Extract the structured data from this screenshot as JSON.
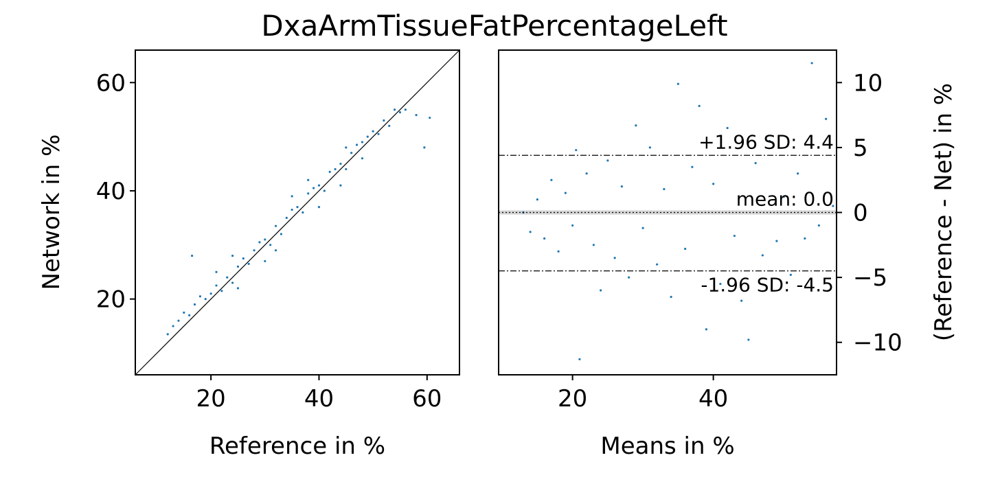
{
  "figure": {
    "title": "DxaArmTissueFatPercentageLeft"
  },
  "chart_data": [
    {
      "type": "scatter",
      "xlabel": "Reference in %",
      "ylabel": "Network in %",
      "xlim": [
        6,
        66
      ],
      "ylim": [
        6,
        66
      ],
      "xticks": [
        20,
        40,
        60
      ],
      "yticks": [
        20,
        40,
        60
      ],
      "xtick_labels": [
        "20",
        "40",
        "60"
      ],
      "ytick_labels": [
        "20",
        "40",
        "60"
      ],
      "identity_line": true,
      "grid": false,
      "point_color": "#1f77b4",
      "line_color": "#000000",
      "series": [
        {
          "values": [
            [
              12,
              13.5
            ],
            [
              13,
              15
            ],
            [
              14,
              16
            ],
            [
              15,
              17.5
            ],
            [
              16,
              17
            ],
            [
              16.5,
              28
            ],
            [
              17,
              19
            ],
            [
              18,
              20.5
            ],
            [
              19,
              20
            ],
            [
              20,
              21
            ],
            [
              21,
              22.5
            ],
            [
              22,
              21.5
            ],
            [
              23,
              24
            ],
            [
              24,
              23
            ],
            [
              25,
              26
            ],
            [
              26,
              27.5
            ],
            [
              27,
              26.5
            ],
            [
              28,
              29
            ],
            [
              29,
              30.5
            ],
            [
              30,
              31
            ],
            [
              31,
              30
            ],
            [
              32,
              33.5
            ],
            [
              33,
              32
            ],
            [
              34,
              35
            ],
            [
              35,
              36.5
            ],
            [
              36,
              37
            ],
            [
              37,
              36
            ],
            [
              38,
              39.5
            ],
            [
              39,
              40.5
            ],
            [
              40,
              41
            ],
            [
              41,
              40
            ],
            [
              42,
              43.5
            ],
            [
              43,
              44
            ],
            [
              44,
              45
            ],
            [
              45,
              44
            ],
            [
              46,
              47
            ],
            [
              47,
              48.5
            ],
            [
              48,
              49
            ],
            [
              49,
              50
            ],
            [
              50,
              51
            ],
            [
              51,
              50.5
            ],
            [
              52,
              53
            ],
            [
              53,
              52
            ],
            [
              54,
              55
            ],
            [
              55,
              54.5
            ],
            [
              56,
              55
            ],
            [
              58,
              54
            ],
            [
              59.5,
              48
            ],
            [
              60.5,
              53.5
            ],
            [
              21,
              25
            ],
            [
              25,
              22
            ],
            [
              30,
              27
            ],
            [
              35,
              39
            ],
            [
              40,
              37
            ],
            [
              45,
              48
            ],
            [
              24,
              28
            ],
            [
              32,
              29
            ],
            [
              38,
              42
            ],
            [
              44,
              41
            ],
            [
              48,
              46
            ]
          ]
        }
      ]
    },
    {
      "type": "scatter",
      "xlabel": "Means in %",
      "ylabel": "(Reference - Net) in %",
      "xlim": [
        9.5,
        57.5
      ],
      "ylim": [
        -12.5,
        12.5
      ],
      "xticks": [
        20,
        40
      ],
      "yticks": [
        10,
        5,
        0,
        -5,
        -10
      ],
      "xtick_labels": [
        "20",
        "40"
      ],
      "ytick_labels": [
        "10",
        "5",
        "0",
        "−5",
        "−10"
      ],
      "grid": false,
      "point_color": "#1f77b4",
      "mean_band_color": "#d3d3d3",
      "reference_lines": [
        {
          "name": "upper",
          "y": 4.4,
          "label": "+1.96 SD: 4.4",
          "style": "dashdot"
        },
        {
          "name": "mean",
          "y": 0.0,
          "label": "mean: 0.0",
          "style": "dotted"
        },
        {
          "name": "lower",
          "y": -4.5,
          "label": "-1.96 SD: -4.5",
          "style": "dashdot"
        }
      ],
      "series": [
        {
          "values": [
            [
              13,
              0
            ],
            [
              14,
              -1.5
            ],
            [
              15,
              1
            ],
            [
              16,
              -2
            ],
            [
              17,
              2.5
            ],
            [
              18,
              -3
            ],
            [
              19,
              1.5
            ],
            [
              20,
              -1
            ],
            [
              20.5,
              4.8
            ],
            [
              21,
              -11.3
            ],
            [
              22,
              3
            ],
            [
              23,
              -2.5
            ],
            [
              24,
              -6
            ],
            [
              25,
              4
            ],
            [
              26,
              -3.5
            ],
            [
              27,
              2
            ],
            [
              28,
              -5
            ],
            [
              29,
              6.7
            ],
            [
              30,
              -1.2
            ],
            [
              31,
              5
            ],
            [
              32,
              -4
            ],
            [
              33,
              1.8
            ],
            [
              34,
              -6.5
            ],
            [
              35,
              9.9
            ],
            [
              36,
              -2.8
            ],
            [
              37,
              3.5
            ],
            [
              38,
              8.2
            ],
            [
              39,
              -9
            ],
            [
              40,
              2.2
            ],
            [
              41,
              -5.5
            ],
            [
              42,
              6.5
            ],
            [
              43,
              -1.8
            ],
            [
              44,
              -6.8
            ],
            [
              45,
              -9.8
            ],
            [
              46,
              3.8
            ],
            [
              47,
              -3.3
            ],
            [
              48,
              5.5
            ],
            [
              49,
              -2.2
            ],
            [
              50,
              1.2
            ],
            [
              51,
              -4.8
            ],
            [
              52,
              3
            ],
            [
              53,
              -2
            ],
            [
              54,
              11.5
            ],
            [
              55,
              -1
            ],
            [
              56,
              7.2
            ],
            [
              57,
              0.5
            ]
          ]
        }
      ]
    }
  ]
}
